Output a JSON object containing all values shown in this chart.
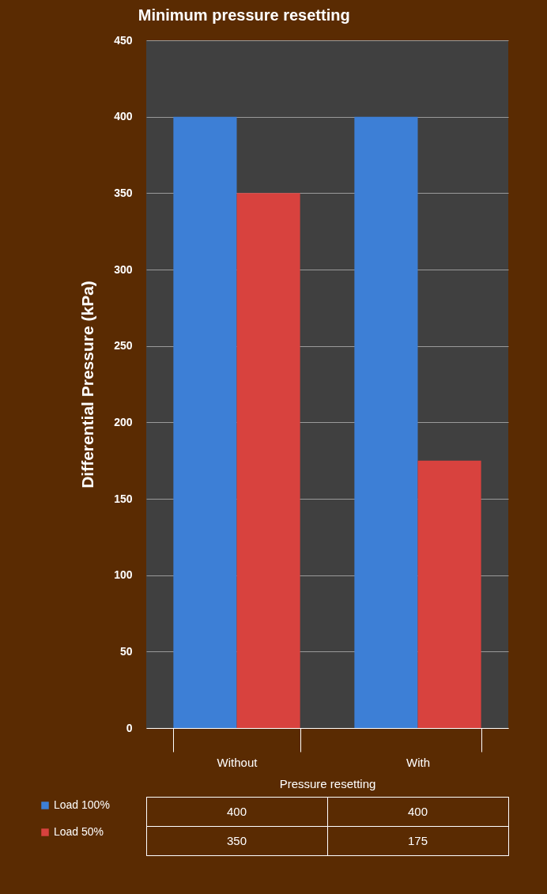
{
  "chart_data": {
    "type": "bar",
    "title": "Minimum pressure resetting",
    "xlabel": "Pressure resetting",
    "ylabel": "Differential Pressure (kPa)",
    "categories": [
      "Without",
      "With"
    ],
    "series": [
      {
        "name": "Load 100%",
        "color": "#3d7fd6",
        "values": [
          400,
          400
        ]
      },
      {
        "name": "Load 50%",
        "color": "#d8423e",
        "values": [
          350,
          175
        ]
      }
    ],
    "ylim": [
      0,
      450
    ],
    "yticks": [
      0,
      50,
      100,
      150,
      200,
      250,
      300,
      350,
      400,
      450
    ],
    "grid": "y",
    "legend": "bottom left",
    "data_labels": true
  }
}
